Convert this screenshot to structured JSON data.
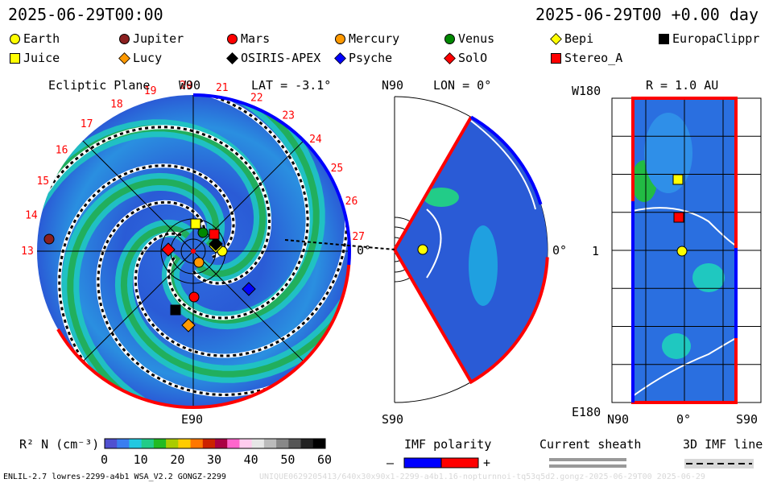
{
  "header": {
    "left_time": "2025-06-29T00:00",
    "right_time": "2025-06-29T00 +0.00 day"
  },
  "legend": [
    {
      "name": "Earth",
      "shape": "circle",
      "color": "#ffff00"
    },
    {
      "name": "Jupiter",
      "shape": "circle",
      "color": "#8b2020"
    },
    {
      "name": "Mars",
      "shape": "circle",
      "color": "#ff0000"
    },
    {
      "name": "Mercury",
      "shape": "circle",
      "color": "#ff9900"
    },
    {
      "name": "Venus",
      "shape": "circle",
      "color": "#008800"
    },
    {
      "name": "Bepi",
      "shape": "diamond",
      "color": "#ffff00"
    },
    {
      "name": "EuropaClippr",
      "shape": "square",
      "color": "#000000"
    },
    {
      "name": "Juice",
      "shape": "square",
      "color": "#ffff00"
    },
    {
      "name": "Lucy",
      "shape": "diamond",
      "color": "#ff9900"
    },
    {
      "name": "OSIRIS-APEX",
      "shape": "diamond",
      "color": "#000000"
    },
    {
      "name": "Psyche",
      "shape": "diamond",
      "color": "#0000ff"
    },
    {
      "name": "SolO",
      "shape": "diamond",
      "color": "#ff0000"
    },
    {
      "name": "Stereo_A",
      "shape": "square",
      "color": "#ff0000"
    }
  ],
  "panels": {
    "ecliptic": {
      "title": "Ecliptic Plane",
      "top_label": "W90",
      "lat_label": "LAT = -3.1°",
      "bottom_label": "E90",
      "right_label": "0°"
    },
    "meridional": {
      "top_label": "N90",
      "lon_label": "LON = 0°",
      "bottom_label": "S90",
      "right_label": "0°"
    },
    "radial": {
      "title": "R = 1.0 AU",
      "top_label": "W180",
      "mid_label": "1",
      "bottom_label": "E180",
      "x_left": "N90",
      "x_mid": "0°",
      "x_right": "S90"
    }
  },
  "carrington_labels": [
    "13",
    "14",
    "15",
    "16",
    "17",
    "18",
    "19",
    "20",
    "21",
    "22",
    "23",
    "24",
    "25",
    "26",
    "27"
  ],
  "colorbar": {
    "label": "R² N (cm⁻³)",
    "ticks": [
      "0",
      "10",
      "20",
      "30",
      "40",
      "50",
      "60"
    ],
    "min": 0,
    "max": 60
  },
  "imf": {
    "title": "IMF polarity",
    "minus": "–",
    "plus": "+"
  },
  "sheath": {
    "title": "Current sheath"
  },
  "imf3d": {
    "title": "3D IMF line"
  },
  "footer": {
    "left": "ENLIL-2.7 lowres-2299-a4b1 WSA_V2.2 GONGZ-2299",
    "right": "UNIQUE0629205413/640x30x90x1-2299-a4b1.16-nopturnnoi-tq53q5d2.gongz-2025-06-29T00   2025-06-29"
  },
  "chart_data": {
    "type": "heatmap",
    "title": "",
    "colorbar_label": "R² N (cm⁻³)",
    "colorbar_range": [
      0,
      60
    ],
    "spacecraft_ecliptic_positions": [
      {
        "name": "Earth",
        "r_au": 1.0,
        "lon_deg": 0
      },
      {
        "name": "Jupiter",
        "r_au": 5.3,
        "lon_deg": 178
      }
    ]
  }
}
